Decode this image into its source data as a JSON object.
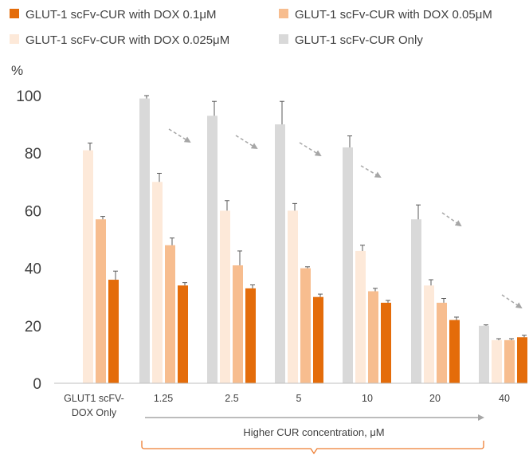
{
  "chart_data": {
    "type": "bar",
    "ylabel": "%",
    "ylim": [
      0,
      100
    ],
    "yticks": [
      0,
      20,
      40,
      60,
      80,
      100
    ],
    "grid": false,
    "legend_position": "top",
    "categories": [
      "GLUT1 scFV-DOX Only",
      "1.25",
      "2.5",
      "5",
      "10",
      "20",
      "40"
    ],
    "category_lines": [
      [
        "GLUT1 scFV-",
        "DOX Only"
      ],
      [
        "1.25"
      ],
      [
        "2.5"
      ],
      [
        "5"
      ],
      [
        "10"
      ],
      [
        "20"
      ],
      [
        "40"
      ]
    ],
    "series": [
      {
        "name": "GLUT-1 scFv-CUR Only",
        "color": "#d9d9d9",
        "values": [
          null,
          99,
          93,
          90,
          82,
          57,
          20
        ],
        "errors": [
          null,
          1,
          5,
          8,
          4,
          5,
          0.3
        ]
      },
      {
        "name": "GLUT-1 scFv-CUR with DOX 0.025μM",
        "color": "#fde9d9",
        "values": [
          81,
          70,
          60,
          60,
          46,
          34,
          15
        ],
        "errors": [
          2.5,
          3,
          3.5,
          2.5,
          2,
          2,
          0.5
        ]
      },
      {
        "name": "GLUT-1 scFv-CUR with DOX 0.05μM",
        "color": "#f7bd8f",
        "values": [
          57,
          48,
          41,
          40,
          32,
          28,
          15
        ],
        "errors": [
          1,
          2.5,
          5,
          0.5,
          1,
          1.5,
          0.5
        ]
      },
      {
        "name": "GLUT-1 scFv-CUR with DOX 0.1μM",
        "color": "#e46c0a",
        "values": [
          36,
          34,
          33,
          30,
          28,
          22,
          16
        ],
        "errors": [
          3,
          1,
          1.2,
          1,
          0.8,
          1,
          0.7
        ]
      }
    ],
    "legend_order": [
      "GLUT-1 scFv-CUR with DOX 0.1μM",
      "GLUT-1 scFv-CUR with DOX 0.05μM",
      "GLUT-1 scFv-CUR with DOX 0.025μM",
      "GLUT-1 scFv-CUR Only"
    ],
    "annotation": "Higher CUR concentration, μM",
    "annotation_colors": {
      "arrow": "#a6a6a6",
      "brace": "#ed7d31",
      "trend_arrows": "#a6a6a6"
    }
  }
}
